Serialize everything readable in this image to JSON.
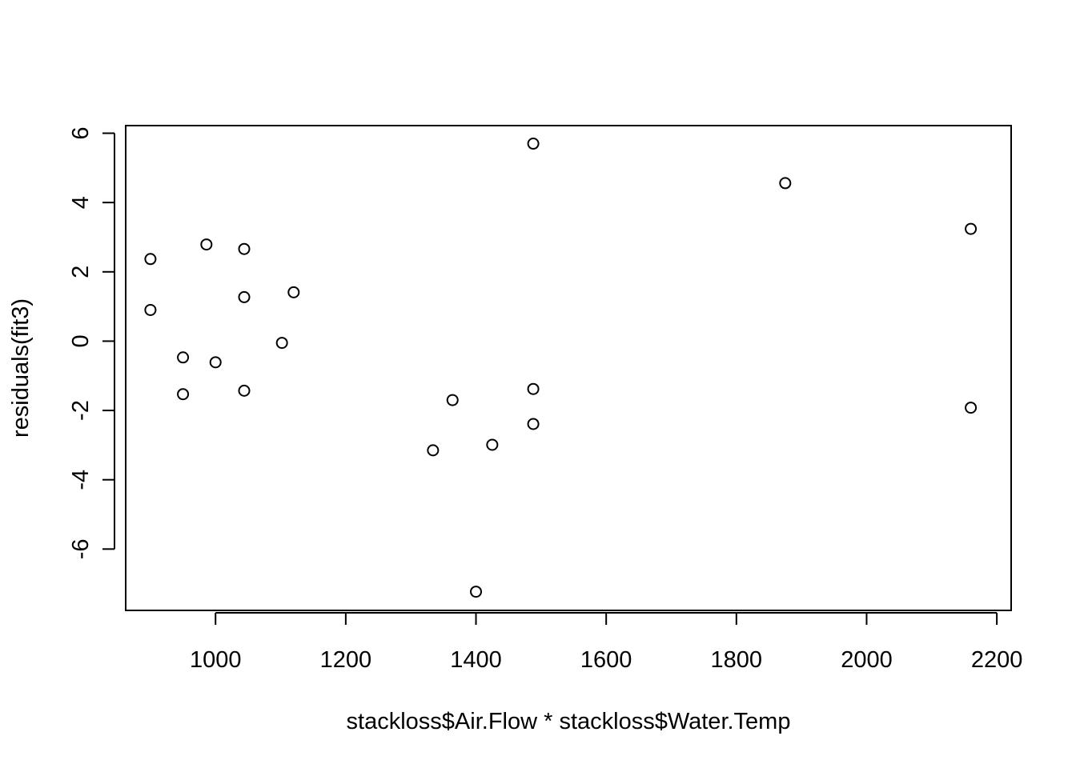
{
  "chart_data": {
    "type": "scatter",
    "title": "",
    "xlabel": "stackloss$Air.Flow * stackloss$Water.Temp",
    "ylabel": "residuals(fit3)",
    "xlim": [
      862,
      2222
    ],
    "ylim": [
      -7.77,
      6.22
    ],
    "x_ticks": [
      1000,
      1200,
      1400,
      1600,
      1800,
      2000,
      2200
    ],
    "y_ticks": [
      -6,
      -4,
      -2,
      0,
      2,
      4,
      6
    ],
    "x_tick_labels": [
      "1000",
      "1200",
      "1400",
      "1600",
      "1800",
      "2000",
      "2200"
    ],
    "y_tick_labels": [
      "-6",
      "-4",
      "-2",
      "0",
      "2",
      "4",
      "6"
    ],
    "grid": false,
    "points": [
      {
        "x": 2160,
        "y": 3.24
      },
      {
        "x": 2160,
        "y": -1.92
      },
      {
        "x": 1875,
        "y": 4.56
      },
      {
        "x": 1488,
        "y": 5.7
      },
      {
        "x": 1488,
        "y": -1.38
      },
      {
        "x": 1488,
        "y": -2.39
      },
      {
        "x": 1400,
        "y": -7.23
      },
      {
        "x": 1425,
        "y": -2.99
      },
      {
        "x": 1364,
        "y": -1.7
      },
      {
        "x": 1334,
        "y": -3.15
      },
      {
        "x": 1120,
        "y": 1.41
      },
      {
        "x": 1102,
        "y": -0.05
      },
      {
        "x": 1044,
        "y": 2.66
      },
      {
        "x": 1044,
        "y": 1.27
      },
      {
        "x": 1044,
        "y": -1.43
      },
      {
        "x": 1000,
        "y": -0.61
      },
      {
        "x": 986,
        "y": 2.79
      },
      {
        "x": 950,
        "y": -0.47
      },
      {
        "x": 950,
        "y": -1.53
      },
      {
        "x": 900,
        "y": 2.37
      },
      {
        "x": 900,
        "y": 0.9
      }
    ]
  }
}
